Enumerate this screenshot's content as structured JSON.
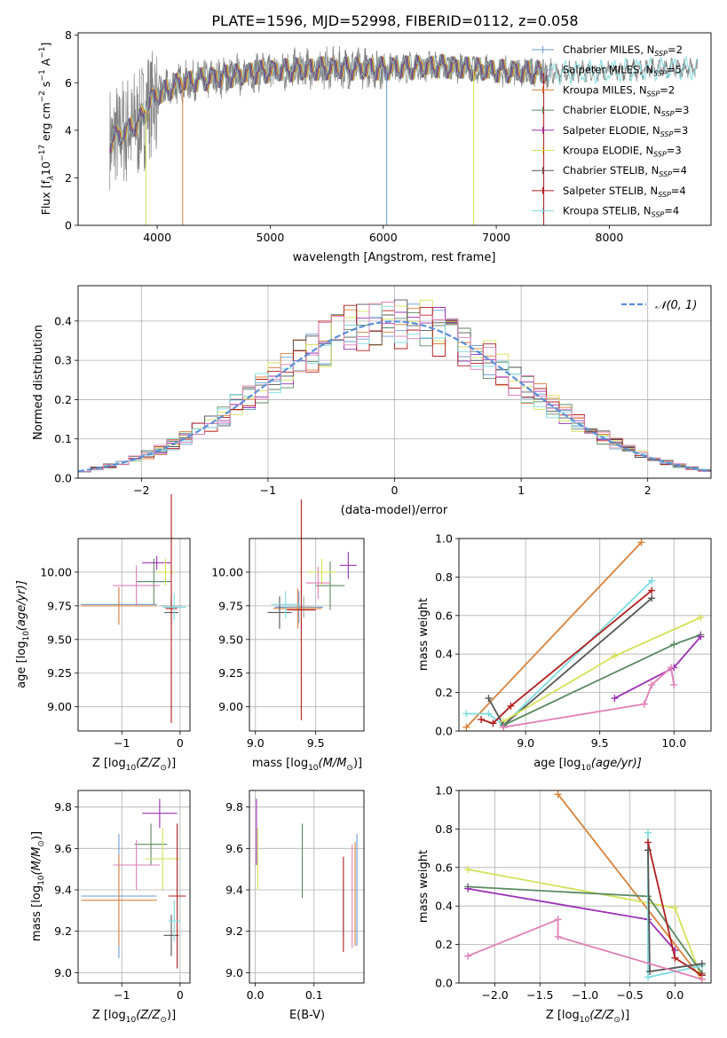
{
  "figure_title": "PLATE=1596, MJD=52998, FIBERID=0112, z=0.058",
  "colors": {
    "Chabrier MILES": "#6c9bd2",
    "Salpeter MILES": "#9aa6ad",
    "Kroupa MILES": "#d9823b",
    "Chabrier ELODIE": "#5b8a62",
    "Salpeter ELODIE": "#9b30b4",
    "Kroupa ELODIE": "#d4e157",
    "Chabrier STELIB": "#555555",
    "Salpeter STELIB": "#b21e1e",
    "Kroupa STELIB": "#7ddce0",
    "pink": "#e07fb6",
    "data": "#808080",
    "normal": "#5a8fd8"
  },
  "chart_data": [
    {
      "id": "spectrum",
      "type": "line",
      "xlabel": "wavelength [Angstrom, rest frame]",
      "ylabel_parts": {
        "a": "Flux [f",
        "b": "λ",
        "c": "10",
        "d": "−17",
        "e": " erg cm",
        "f": "−2",
        "g": " s",
        "h": "−1",
        "i": " A",
        "j": "−1",
        "k": "]"
      },
      "xlim": [
        3300,
        8900
      ],
      "ylim": [
        0,
        8.1
      ],
      "xticks": [
        4000,
        5000,
        6000,
        7000,
        8000
      ],
      "yticks": [
        0,
        2,
        4,
        6,
        8
      ],
      "legend_position": "upper right",
      "legend": [
        {
          "label": "Chabrier MILES, N",
          "sub": "SSP",
          "tail": "=2",
          "color_key": "Chabrier MILES"
        },
        {
          "label": "Salpeter MILES, N",
          "sub": "SSP",
          "tail": "=5",
          "color_key": "Salpeter MILES"
        },
        {
          "label": "Kroupa MILES, N",
          "sub": "SSP",
          "tail": "=2",
          "color_key": "Kroupa MILES"
        },
        {
          "label": "Chabrier ELODIE, N",
          "sub": "SSP",
          "tail": "=3",
          "color_key": "Chabrier ELODIE"
        },
        {
          "label": "Salpeter ELODIE, N",
          "sub": "SSP",
          "tail": "=3",
          "color_key": "Salpeter ELODIE"
        },
        {
          "label": "Kroupa ELODIE, N",
          "sub": "SSP",
          "tail": "=3",
          "color_key": "Kroupa ELODIE"
        },
        {
          "label": "Chabrier STELIB, N",
          "sub": "SSP",
          "tail": "=4",
          "color_key": "Chabrier STELIB"
        },
        {
          "label": "Salpeter STELIB, N",
          "sub": "SSP",
          "tail": "=4",
          "color_key": "Salpeter STELIB"
        },
        {
          "label": "Kroupa STELIB, N",
          "sub": "SSP",
          "tail": "=4",
          "color_key": "Kroupa STELIB"
        }
      ],
      "continuum_anchors": [
        [
          3580,
          3.5
        ],
        [
          3700,
          3.9
        ],
        [
          3850,
          4.4
        ],
        [
          3950,
          5.3
        ],
        [
          4050,
          5.6
        ],
        [
          4200,
          6.0
        ],
        [
          4500,
          6.2
        ],
        [
          5000,
          6.5
        ],
        [
          5500,
          6.6
        ],
        [
          6000,
          6.6
        ],
        [
          6500,
          6.7
        ],
        [
          7000,
          6.5
        ],
        [
          7500,
          6.4
        ],
        [
          8000,
          6.5
        ],
        [
          8500,
          6.6
        ],
        [
          8780,
          6.6
        ]
      ],
      "data_range": [
        3580,
        8780
      ],
      "model_end": 7450,
      "dropouts": [
        [
          3900,
          "Kroupa ELODIE"
        ],
        [
          4225,
          "Kroupa MILES"
        ],
        [
          6030,
          "Chabrier MILES"
        ],
        [
          6800,
          "Kroupa ELODIE"
        ],
        [
          7420,
          "Salpeter STELIB"
        ]
      ]
    },
    {
      "id": "residuals",
      "type": "histogram",
      "xlabel": "(data-model)/error",
      "ylabel": "Normed distribution",
      "xlim": [
        -2.5,
        2.5
      ],
      "ylim": [
        0,
        0.49
      ],
      "xticks": [
        -2,
        -1,
        0,
        1,
        2
      ],
      "xtick_labels": [
        "−2",
        "−1",
        "0",
        "1",
        "2"
      ],
      "yticks": [
        0,
        0.1,
        0.2,
        0.3,
        0.4
      ],
      "ytick_labels": [
        "0.0",
        "0.1",
        "0.2",
        "0.3",
        "0.4"
      ],
      "bin_width": 0.1,
      "legend_position": "upper right",
      "legend_label": "𝒩(0, 1)",
      "series_colors": [
        "Chabrier MILES",
        "Kroupa MILES",
        "Chabrier ELODIE",
        "Salpeter ELODIE",
        "Kroupa ELODIE",
        "Chabrier STELIB",
        "Salpeter STELIB",
        "Kroupa STELIB",
        "pink"
      ]
    },
    {
      "id": "age_vs_Z",
      "type": "errorbar",
      "xlabel_parts": {
        "a": "Z [log",
        "b": "10",
        "c": "(Z/Z",
        "d": "⊙",
        "e": ")]"
      },
      "ylabel_parts": {
        "a": "age  [log",
        "b": "10",
        "c": "(age/yr)]"
      },
      "xlim": [
        -1.75,
        0.17
      ],
      "ylim": [
        8.82,
        10.25
      ],
      "xticks": [
        -1,
        0
      ],
      "xtick_labels": [
        "−1",
        "0"
      ],
      "yticks": [
        9.0,
        9.25,
        9.5,
        9.75,
        10.0
      ],
      "ytick_labels": [
        "9.00",
        "9.25",
        "9.50",
        "9.75",
        "10.00"
      ],
      "points": [
        {
          "x": -1.05,
          "xerr": 0.65,
          "y": 9.76,
          "yerr": 0.12,
          "c": "Chabrier MILES"
        },
        {
          "x": -1.05,
          "xerr": 0.65,
          "y": 9.75,
          "yerr": 0.14,
          "c": "Kroupa MILES"
        },
        {
          "x": -0.15,
          "xerr": 0.18,
          "y": 9.75,
          "yerr": 0.07,
          "c": "Salpeter MILES"
        },
        {
          "x": -0.45,
          "xerr": 0.3,
          "y": 9.93,
          "yerr": 0.17,
          "c": "Chabrier ELODIE"
        },
        {
          "x": -0.4,
          "xerr": 0.25,
          "y": 10.07,
          "yerr": 0.05,
          "c": "Salpeter ELODIE"
        },
        {
          "x": -0.25,
          "xerr": 0.15,
          "y": 10.0,
          "yerr": 0.1,
          "c": "Kroupa ELODIE"
        },
        {
          "x": -0.15,
          "xerr": 0.12,
          "y": 9.7,
          "yerr": 0.1,
          "c": "Chabrier STELIB"
        },
        {
          "x": -0.15,
          "xerr": 0.1,
          "y": 9.73,
          "yerr": 0.85,
          "c": "Salpeter STELIB"
        },
        {
          "x": -0.1,
          "xerr": 0.2,
          "y": 9.74,
          "yerr": 0.1,
          "c": "Kroupa STELIB"
        },
        {
          "x": -0.75,
          "xerr": 0.4,
          "y": 9.9,
          "yerr": 0.15,
          "c": "pink"
        }
      ]
    },
    {
      "id": "age_vs_mass",
      "type": "errorbar",
      "xlabel_parts": {
        "a": "mass [log",
        "b": "10",
        "c": "(M/M",
        "d": "⊙",
        "e": ")]"
      },
      "ylabel_parts": {
        "a": "",
        "b": "",
        "c": ""
      },
      "xlim": [
        8.95,
        9.9
      ],
      "ylim": [
        8.82,
        10.25
      ],
      "xticks": [
        9.0,
        9.5
      ],
      "xtick_labels": [
        "9.0",
        "9.5"
      ],
      "yticks": [
        9.0,
        9.25,
        9.5,
        9.75,
        10.0
      ],
      "ytick_labels": [
        "9.00",
        "9.25",
        "9.50",
        "9.75",
        "10.00"
      ],
      "points": [
        {
          "x": 9.36,
          "xerr": 0.2,
          "y": 9.74,
          "yerr": 0.12,
          "c": "Chabrier MILES"
        },
        {
          "x": 9.35,
          "xerr": 0.2,
          "y": 9.73,
          "yerr": 0.15,
          "c": "Kroupa MILES"
        },
        {
          "x": 9.4,
          "xerr": 0.12,
          "y": 9.74,
          "yerr": 0.08,
          "c": "Salpeter MILES"
        },
        {
          "x": 9.62,
          "xerr": 0.12,
          "y": 9.9,
          "yerr": 0.18,
          "c": "Chabrier ELODIE"
        },
        {
          "x": 9.77,
          "xerr": 0.07,
          "y": 10.05,
          "yerr": 0.1,
          "c": "Salpeter ELODIE"
        },
        {
          "x": 9.55,
          "xerr": 0.12,
          "y": 10.0,
          "yerr": 0.1,
          "c": "Kroupa ELODIE"
        },
        {
          "x": 9.2,
          "xerr": 0.1,
          "y": 9.7,
          "yerr": 0.12,
          "c": "Chabrier STELIB"
        },
        {
          "x": 9.38,
          "xerr": 0.12,
          "y": 9.72,
          "yerr": 0.82,
          "c": "Salpeter STELIB"
        },
        {
          "x": 9.25,
          "xerr": 0.12,
          "y": 9.76,
          "yerr": 0.1,
          "c": "Kroupa STELIB"
        },
        {
          "x": 9.52,
          "xerr": 0.1,
          "y": 9.92,
          "yerr": 0.12,
          "c": "pink"
        }
      ]
    },
    {
      "id": "mass_vs_Z",
      "type": "errorbar",
      "xlabel_parts": {
        "a": "Z [log",
        "b": "10",
        "c": "(Z/Z",
        "d": "⊙",
        "e": ")]"
      },
      "ylabel_parts": {
        "a": "mass [log",
        "b": "10",
        "c": "(M/M",
        "d": "⊙",
        "e": ")]"
      },
      "xlim": [
        -1.75,
        0.17
      ],
      "ylim": [
        8.95,
        9.88
      ],
      "xticks": [
        -1,
        0
      ],
      "xtick_labels": [
        "−1",
        "0"
      ],
      "yticks": [
        9.0,
        9.2,
        9.4,
        9.6,
        9.8
      ],
      "ytick_labels": [
        "9.0",
        "9.2",
        "9.4",
        "9.6",
        "9.8"
      ],
      "points": [
        {
          "x": -1.05,
          "xerr": 0.65,
          "y": 9.37,
          "yerr": 0.3,
          "c": "Chabrier MILES"
        },
        {
          "x": -1.05,
          "xerr": 0.65,
          "y": 9.35,
          "yerr": 0.22,
          "c": "Kroupa MILES"
        },
        {
          "x": -0.5,
          "xerr": 0.28,
          "y": 9.62,
          "yerr": 0.1,
          "c": "Chabrier ELODIE"
        },
        {
          "x": -0.35,
          "xerr": 0.3,
          "y": 9.77,
          "yerr": 0.07,
          "c": "Salpeter ELODIE"
        },
        {
          "x": -0.3,
          "xerr": 0.3,
          "y": 9.55,
          "yerr": 0.15,
          "c": "Kroupa ELODIE"
        },
        {
          "x": -0.15,
          "xerr": 0.13,
          "y": 9.18,
          "yerr": 0.1,
          "c": "Chabrier STELIB"
        },
        {
          "x": -0.05,
          "xerr": 0.15,
          "y": 9.37,
          "yerr": 0.35,
          "c": "Salpeter STELIB"
        },
        {
          "x": -0.1,
          "xerr": 0.1,
          "y": 9.25,
          "yerr": 0.1,
          "c": "Kroupa STELIB"
        },
        {
          "x": -0.75,
          "xerr": 0.4,
          "y": 9.52,
          "yerr": 0.12,
          "c": "pink"
        }
      ]
    },
    {
      "id": "mass_vs_EBV",
      "type": "errorbar",
      "xlabel": "E(B-V)",
      "xlim": [
        -0.01,
        0.185
      ],
      "ylim": [
        8.95,
        9.88
      ],
      "xticks": [
        0.0,
        0.1
      ],
      "xtick_labels": [
        "0.0",
        "0.1"
      ],
      "yticks": [
        9.0,
        9.2,
        9.4,
        9.6,
        9.8
      ],
      "ytick_labels": [
        "9.0",
        "9.2",
        "9.4",
        "9.6",
        "9.8"
      ],
      "points": [
        {
          "x": 0.002,
          "y": 9.68,
          "yerr": 0.16,
          "c": "Salpeter ELODIE"
        },
        {
          "x": 0.004,
          "y": 9.55,
          "yerr": 0.15,
          "c": "Kroupa ELODIE"
        },
        {
          "x": 0.08,
          "y": 9.54,
          "yerr": 0.18,
          "c": "Chabrier ELODIE"
        },
        {
          "x": 0.15,
          "y": 9.3,
          "yerr": 0.13,
          "c": "Kroupa STELIB"
        },
        {
          "x": 0.15,
          "y": 9.33,
          "yerr": 0.23,
          "c": "Salpeter STELIB"
        },
        {
          "x": 0.165,
          "y": 9.37,
          "yerr": 0.25,
          "c": "pink"
        },
        {
          "x": 0.17,
          "y": 9.38,
          "yerr": 0.25,
          "c": "Kroupa MILES"
        },
        {
          "x": 0.173,
          "y": 9.4,
          "yerr": 0.27,
          "c": "Chabrier MILES"
        }
      ]
    },
    {
      "id": "weight_vs_age",
      "type": "line",
      "xlabel_parts": {
        "a": "age  [log",
        "b": "10",
        "c": "(age/yr)]"
      },
      "ylabel": "mass weight",
      "xlim": [
        8.55,
        10.25
      ],
      "ylim": [
        0,
        1.0
      ],
      "xticks": [
        9.0,
        9.5,
        10.0
      ],
      "xtick_labels": [
        "9.0",
        "9.5",
        "10.0"
      ],
      "yticks": [
        0,
        0.2,
        0.4,
        0.6,
        0.8,
        1.0
      ],
      "ytick_labels": [
        "0.0",
        "0.2",
        "0.4",
        "0.6",
        "0.8",
        "1.0"
      ],
      "series": [
        {
          "c": "Kroupa MILES",
          "x": [
            8.6,
            9.78
          ],
          "y": [
            0.02,
            0.98
          ]
        },
        {
          "c": "Kroupa STELIB",
          "x": [
            8.6,
            8.75,
            8.85,
            9.85
          ],
          "y": [
            0.09,
            0.09,
            0.03,
            0.78
          ]
        },
        {
          "c": "Salpeter STELIB",
          "x": [
            8.7,
            8.78,
            8.9,
            9.85
          ],
          "y": [
            0.06,
            0.04,
            0.13,
            0.73
          ]
        },
        {
          "c": "Chabrier STELIB",
          "x": [
            8.75,
            8.85,
            9.85
          ],
          "y": [
            0.17,
            0.03,
            0.69
          ]
        },
        {
          "c": "Kroupa ELODIE",
          "x": [
            8.85,
            9.6,
            10.18
          ],
          "y": [
            0.05,
            0.39,
            0.59
          ]
        },
        {
          "c": "Chabrier ELODIE",
          "x": [
            8.85,
            10.0,
            10.18
          ],
          "y": [
            0.03,
            0.45,
            0.5
          ]
        },
        {
          "c": "Salpeter ELODIE",
          "x": [
            9.6,
            10.0,
            10.18
          ],
          "y": [
            0.17,
            0.33,
            0.49
          ]
        },
        {
          "c": "pink",
          "x": [
            8.85,
            9.8,
            9.85,
            9.98,
            10.0
          ],
          "y": [
            0.02,
            0.14,
            0.24,
            0.33,
            0.24
          ]
        }
      ]
    },
    {
      "id": "weight_vs_Z",
      "type": "line",
      "xlabel_parts": {
        "a": "Z [log",
        "b": "10",
        "c": "(Z/Z",
        "d": "⊙",
        "e": ")]"
      },
      "ylabel": "mass weight",
      "xlim": [
        -2.4,
        0.4
      ],
      "ylim": [
        0,
        1.0
      ],
      "xticks": [
        -2.0,
        -1.5,
        -1.0,
        -0.5,
        0.0
      ],
      "xtick_labels": [
        "−2.0",
        "−1.5",
        "−1.0",
        "−0.5",
        "0.0"
      ],
      "yticks": [
        0,
        0.2,
        0.4,
        0.6,
        0.8,
        1.0
      ],
      "ytick_labels": [
        "0.0",
        "0.2",
        "0.4",
        "0.6",
        "0.8",
        "1.0"
      ],
      "series": [
        {
          "c": "Kroupa MILES",
          "x": [
            -1.3,
            0.3
          ],
          "y": [
            0.98,
            0.02
          ]
        },
        {
          "c": "Kroupa ELODIE",
          "x": [
            -2.3,
            0.0,
            0.3
          ],
          "y": [
            0.59,
            0.39,
            0.02
          ]
        },
        {
          "c": "Chabrier ELODIE",
          "x": [
            -2.3,
            -0.3,
            0.3
          ],
          "y": [
            0.5,
            0.45,
            0.05
          ]
        },
        {
          "c": "Salpeter ELODIE",
          "x": [
            -2.3,
            -0.3,
            0.0
          ],
          "y": [
            0.49,
            0.33,
            0.17
          ]
        },
        {
          "c": "Kroupa STELIB",
          "x": [
            -0.3,
            -0.3,
            0.3
          ],
          "y": [
            0.78,
            0.03,
            0.09
          ]
        },
        {
          "c": "Salpeter STELIB",
          "x": [
            -0.3,
            0.0,
            0.3
          ],
          "y": [
            0.73,
            0.13,
            0.04
          ]
        },
        {
          "c": "Chabrier STELIB",
          "x": [
            -0.3,
            -0.28,
            0.3
          ],
          "y": [
            0.69,
            0.06,
            0.1
          ]
        },
        {
          "c": "pink",
          "x": [
            -2.3,
            -1.3,
            -1.3,
            0.3
          ],
          "y": [
            0.14,
            0.33,
            0.24,
            0.02
          ]
        }
      ]
    }
  ]
}
